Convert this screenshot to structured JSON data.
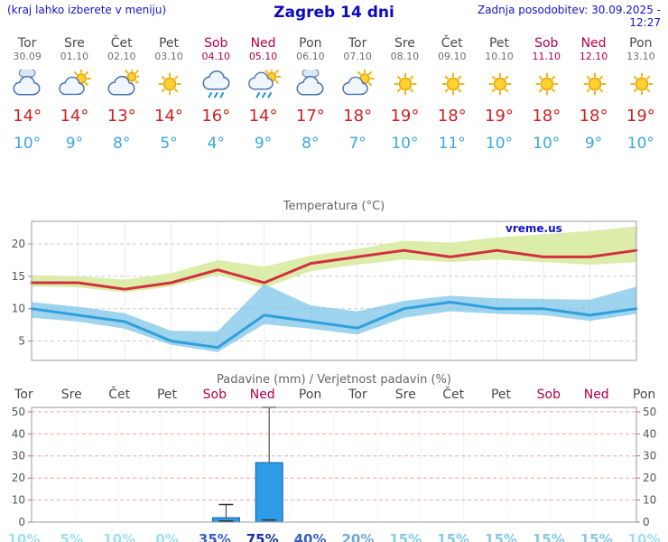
{
  "header": {
    "note": "(kraj lahko izberete v meniju)",
    "title": "Zagreb 14 dni",
    "updated": "Zadnja posodobitev: 30.09.2025 - 12:27"
  },
  "colors": {
    "header_text": "#1414cc",
    "title_text": "#0b0bbe",
    "weekday": "#4a4a4a",
    "weekend": "#b10048",
    "date": "#6e6e6e",
    "tmax": "#cc2222",
    "tmin": "#3aa7e0",
    "temp_line_max": "#d22f3f",
    "temp_line_min": "#2f9fdc",
    "band_max": "#dcedaa",
    "band_min": "#7fc6e8",
    "grid": "#cccccc",
    "grid_precip": "#e2a8a8",
    "axis": "#999999",
    "axis_label": "#555555",
    "bar_fill": "#2e9ce8",
    "bar_stroke": "#155f9f",
    "whisker": "#333333",
    "watermark_color": "#1515cc",
    "prob_scale": {
      "very_low": "#9edfec",
      "low": "#85c8e8",
      "medium": "#6fa6dc",
      "high": "#3a5fc0",
      "very_high": "#17309e"
    }
  },
  "days": [
    {
      "name": "Tor",
      "date": "30.09",
      "weekend": false,
      "icon": "cloudy",
      "tmax": "14°",
      "tmin": "10°"
    },
    {
      "name": "Sre",
      "date": "01.10",
      "weekend": false,
      "icon": "partly-sunny",
      "tmax": "14°",
      "tmin": "9°"
    },
    {
      "name": "Čet",
      "date": "02.10",
      "weekend": false,
      "icon": "mostly-cloudy",
      "tmax": "13°",
      "tmin": "8°"
    },
    {
      "name": "Pet",
      "date": "03.10",
      "weekend": false,
      "icon": "sunny",
      "tmax": "14°",
      "tmin": "5°"
    },
    {
      "name": "Sob",
      "date": "04.10",
      "weekend": true,
      "icon": "rain",
      "tmax": "16°",
      "tmin": "4°"
    },
    {
      "name": "Ned",
      "date": "05.10",
      "weekend": true,
      "icon": "sun-rain",
      "tmax": "14°",
      "tmin": "9°"
    },
    {
      "name": "Pon",
      "date": "06.10",
      "weekend": false,
      "icon": "cloudy",
      "tmax": "17°",
      "tmin": "8°"
    },
    {
      "name": "Tor",
      "date": "07.10",
      "weekend": false,
      "icon": "partly-sunny",
      "tmax": "18°",
      "tmin": "7°"
    },
    {
      "name": "Sre",
      "date": "08.10",
      "weekend": false,
      "icon": "sunny",
      "tmax": "19°",
      "tmin": "10°"
    },
    {
      "name": "Čet",
      "date": "09.10",
      "weekend": false,
      "icon": "sunny",
      "tmax": "18°",
      "tmin": "11°"
    },
    {
      "name": "Pet",
      "date": "10.10",
      "weekend": false,
      "icon": "sunny",
      "tmax": "19°",
      "tmin": "10°"
    },
    {
      "name": "Sob",
      "date": "11.10",
      "weekend": true,
      "icon": "sunny",
      "tmax": "18°",
      "tmin": "10°"
    },
    {
      "name": "Ned",
      "date": "12.10",
      "weekend": true,
      "icon": "sunny",
      "tmax": "18°",
      "tmin": "9°"
    },
    {
      "name": "Pon",
      "date": "13.10",
      "weekend": false,
      "icon": "sunny",
      "tmax": "19°",
      "tmin": "10°"
    }
  ],
  "chart_data": [
    {
      "type": "line",
      "title": "Temperatura (°C)",
      "watermark": "vreme.us",
      "x_labels": [
        "Tor",
        "Sre",
        "Čet",
        "Pet",
        "Sob",
        "Ned",
        "Pon",
        "Tor",
        "Sre",
        "Čet",
        "Pet",
        "Sob",
        "Ned",
        "Pon"
      ],
      "ylim": [
        2,
        23.5
      ],
      "yticks": [
        5,
        10,
        15,
        20
      ],
      "grid": true,
      "legend": "none",
      "series": [
        {
          "name": "max temperature",
          "color": "#d22f3f",
          "values": [
            14,
            14,
            13,
            14,
            16,
            14,
            17,
            18,
            19,
            18,
            19,
            18,
            18,
            19
          ]
        },
        {
          "name": "min temperature",
          "color": "#2f9fdc",
          "values": [
            10,
            9,
            8,
            5,
            4,
            9,
            8,
            7,
            10,
            11,
            10,
            10,
            9,
            10
          ]
        },
        {
          "name": "max range high",
          "values": [
            15.2,
            15,
            14.5,
            15.5,
            17.5,
            16.5,
            18.2,
            19.2,
            20.5,
            20.2,
            21,
            21.5,
            22,
            22.7
          ]
        },
        {
          "name": "max range low",
          "values": [
            13.4,
            13.3,
            12.5,
            13.4,
            15.2,
            13.2,
            15.8,
            16.8,
            17.6,
            17.2,
            17.6,
            17.2,
            16.8,
            17.2
          ]
        },
        {
          "name": "min range high",
          "values": [
            11,
            10.3,
            9.3,
            6.6,
            6.5,
            13.8,
            10.5,
            9.6,
            11.2,
            12,
            11.6,
            11.5,
            11.4,
            13.4
          ]
        },
        {
          "name": "min range low",
          "values": [
            8.6,
            8,
            6.9,
            4.4,
            3.3,
            7.6,
            6.9,
            6,
            8.6,
            9.6,
            9.2,
            9,
            8.1,
            9.2
          ]
        }
      ]
    },
    {
      "type": "bar",
      "title": "Padavine (mm) / Verjetnost padavin (%)",
      "categories": [
        "Tor",
        "Sre",
        "Čet",
        "Pet",
        "Sob",
        "Ned",
        "Pon",
        "Tor",
        "Sre",
        "Čet",
        "Pet",
        "Sob",
        "Ned",
        "Pon"
      ],
      "ylim": [
        0,
        52
      ],
      "yticks": [
        0,
        10,
        20,
        30,
        40,
        50
      ],
      "precip_mm": [
        0,
        0,
        0,
        0,
        2,
        27,
        0,
        0,
        0,
        0,
        0,
        0,
        0,
        0
      ],
      "whisker_high": [
        0,
        0,
        0,
        0,
        8,
        52,
        0,
        0,
        0,
        0,
        0,
        0,
        0,
        0
      ],
      "whisker_low": [
        0,
        0,
        0,
        0,
        0.5,
        1,
        0,
        0,
        0,
        0,
        0,
        0,
        0,
        0
      ],
      "probability_pct": [
        10,
        5,
        10,
        0,
        35,
        75,
        40,
        20,
        15,
        15,
        15,
        15,
        15,
        10
      ]
    }
  ]
}
